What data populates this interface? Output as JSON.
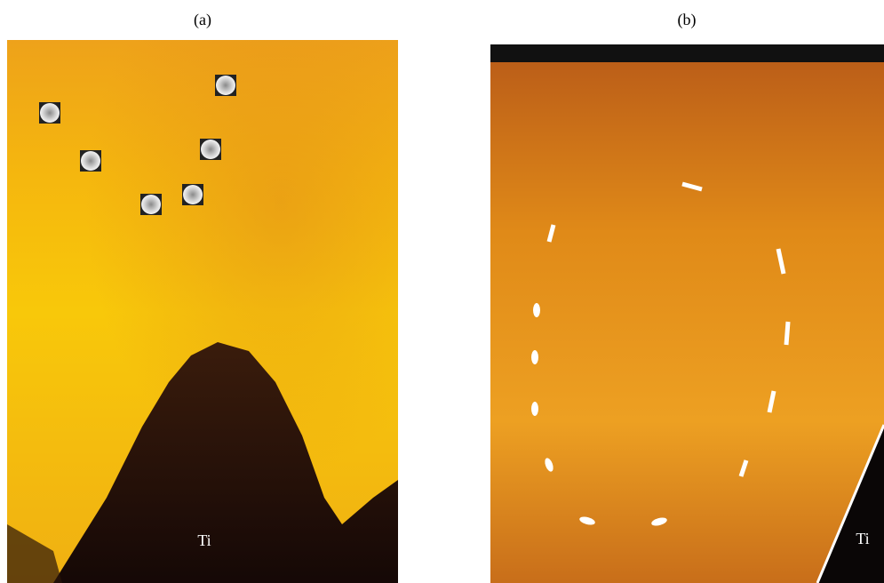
{
  "panels": [
    {
      "label": "(a)",
      "annotation": "Ti"
    },
    {
      "label": "(b)",
      "annotation": "Ti"
    }
  ]
}
